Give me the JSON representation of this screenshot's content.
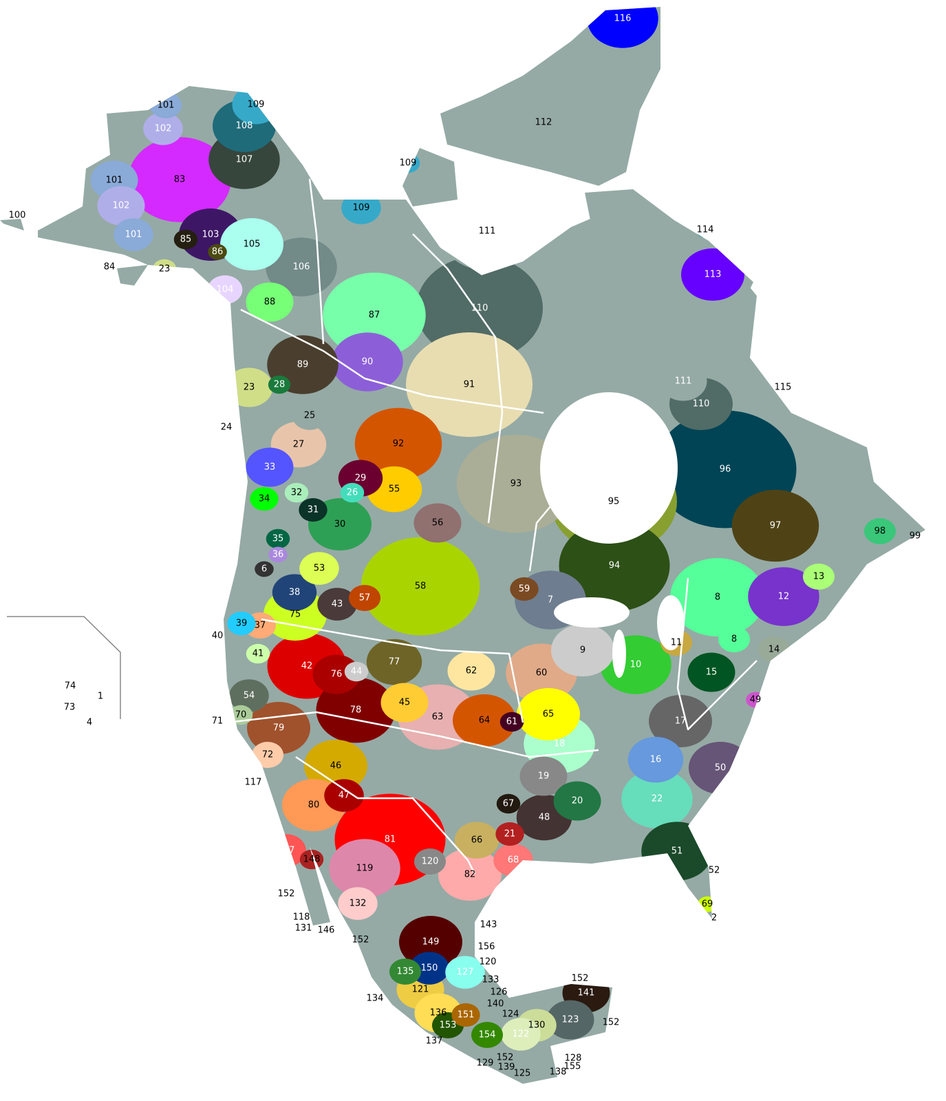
{
  "map": {
    "land_color": "#95aaa5",
    "water_color": "#ffffff",
    "border_color": "#ffffff",
    "regions": [
      {
        "label": "116",
        "color": "#0000ff"
      },
      {
        "label": "109",
        "color": "#36a9c9"
      },
      {
        "label": "101",
        "color": "#8aaad8"
      },
      {
        "label": "108",
        "color": "#1f6b7a"
      },
      {
        "label": "102",
        "color": "#b0aee8"
      },
      {
        "label": "107",
        "color": "#36463c"
      },
      {
        "label": "83",
        "color": "#d42aff"
      },
      {
        "label": "101",
        "color": "#8aaad8"
      },
      {
        "label": "109",
        "color": "#36a9c9"
      },
      {
        "label": "112",
        "color": "#55ddff"
      },
      {
        "label": "102",
        "color": "#b0aee8"
      },
      {
        "label": "109",
        "color": "#36a9c9"
      },
      {
        "label": "111",
        "color": "#95aaa5"
      },
      {
        "label": "114",
        "color": "#1d8aa0"
      },
      {
        "label": "100",
        "color": "#44287a"
      },
      {
        "label": "101",
        "color": "#8aaad8"
      },
      {
        "label": "85",
        "color": "#241f10"
      },
      {
        "label": "103",
        "color": "#3d1766"
      },
      {
        "label": "86",
        "color": "#4b4a10"
      },
      {
        "label": "105",
        "color": "#aaffee"
      },
      {
        "label": "106",
        "color": "#728a88"
      },
      {
        "label": "84",
        "color": "#aba58e"
      },
      {
        "label": "23",
        "color": "#d0de88"
      },
      {
        "label": "113",
        "color": "#6600ff"
      },
      {
        "label": "104",
        "color": "#e8d5ff"
      },
      {
        "label": "88",
        "color": "#77ff77"
      },
      {
        "label": "87",
        "color": "#77ffaa"
      },
      {
        "label": "110",
        "color": "#516b66"
      },
      {
        "label": "90",
        "color": "#8c5fd8"
      },
      {
        "label": "89",
        "color": "#4a3f2e"
      },
      {
        "label": "91",
        "color": "#e8ddb0"
      },
      {
        "label": "111",
        "color": "#95aaa5"
      },
      {
        "label": "115",
        "color": "#1ad6aa"
      },
      {
        "label": "110",
        "color": "#516b66"
      },
      {
        "label": "23",
        "color": "#d0de88"
      },
      {
        "label": "28",
        "color": "#1a7a3c"
      },
      {
        "label": "25",
        "color": "#95aaa5"
      },
      {
        "label": "24",
        "color": "#2b3b30"
      },
      {
        "label": "27",
        "color": "#e8c4aa"
      },
      {
        "label": "92",
        "color": "#d45500"
      },
      {
        "label": "96",
        "color": "#004455"
      },
      {
        "label": "33",
        "color": "#5555ff"
      },
      {
        "label": "29",
        "color": "#6b0030"
      },
      {
        "label": "93",
        "color": "#aaae96"
      },
      {
        "label": "55",
        "color": "#ffcc00"
      },
      {
        "label": "26",
        "color": "#44ddbb"
      },
      {
        "label": "32",
        "color": "#aaeebb"
      },
      {
        "label": "34",
        "color": "#00ff00"
      },
      {
        "label": "95",
        "color": "#88a030"
      },
      {
        "label": "31",
        "color": "#0b3327"
      },
      {
        "label": "30",
        "color": "#2ea055"
      },
      {
        "label": "56",
        "color": "#917070"
      },
      {
        "label": "97",
        "color": "#4f4316"
      },
      {
        "label": "98",
        "color": "#3ac77a"
      },
      {
        "label": "99",
        "color": "#ffffff"
      },
      {
        "label": "35",
        "color": "#006644"
      },
      {
        "label": "36",
        "color": "#aa88dd"
      },
      {
        "label": "94",
        "color": "#2d5016"
      },
      {
        "label": "53",
        "color": "#ddff55"
      },
      {
        "label": "6",
        "color": "#333333"
      },
      {
        "label": "13",
        "color": "#aaff77"
      },
      {
        "label": "59",
        "color": "#7a4a22"
      },
      {
        "label": "58",
        "color": "#aad400"
      },
      {
        "label": "38",
        "color": "#214478"
      },
      {
        "label": "57",
        "color": "#c04500"
      },
      {
        "label": "43",
        "color": "#4a3a3a"
      },
      {
        "label": "7",
        "color": "#6f7d90"
      },
      {
        "label": "8",
        "color": "#55ff99"
      },
      {
        "label": "12",
        "color": "#7733cc"
      },
      {
        "label": "75",
        "color": "#ccff22"
      },
      {
        "label": "39",
        "color": "#22ccff"
      },
      {
        "label": "37",
        "color": "#ffaa77"
      },
      {
        "label": "40",
        "color": "#116666"
      },
      {
        "label": "11",
        "color": "#c8a840"
      },
      {
        "label": "8",
        "color": "#55ff99"
      },
      {
        "label": "14",
        "color": "#99aa99"
      },
      {
        "label": "9",
        "color": "#cccccc"
      },
      {
        "label": "41",
        "color": "#ccffaa"
      },
      {
        "label": "42",
        "color": "#dd0000"
      },
      {
        "label": "77",
        "color": "#6e6428"
      },
      {
        "label": "44",
        "color": "#cccccc"
      },
      {
        "label": "76",
        "color": "#aa0000"
      },
      {
        "label": "62",
        "color": "#ffe6a0"
      },
      {
        "label": "10",
        "color": "#33cc33"
      },
      {
        "label": "15",
        "color": "#005522"
      },
      {
        "label": "60",
        "color": "#e0aa88"
      },
      {
        "label": "74",
        "color": "#66bb99"
      },
      {
        "label": "1",
        "color": "#3b2a10"
      },
      {
        "label": "54",
        "color": "#5f6f5f"
      },
      {
        "label": "49",
        "color": "#cc55cc"
      },
      {
        "label": "73",
        "color": "#88ffaa"
      },
      {
        "label": "45",
        "color": "#ffcc33"
      },
      {
        "label": "78",
        "color": "#800000"
      },
      {
        "label": "70",
        "color": "#aacc99"
      },
      {
        "label": "4",
        "color": "#333333"
      },
      {
        "label": "71",
        "color": "#d45588"
      },
      {
        "label": "63",
        "color": "#e8b0b0"
      },
      {
        "label": "64",
        "color": "#d45500"
      },
      {
        "label": "61",
        "color": "#440022"
      },
      {
        "label": "65",
        "color": "#ffff00"
      },
      {
        "label": "17",
        "color": "#666666"
      },
      {
        "label": "79",
        "color": "#a0522d"
      },
      {
        "label": "18",
        "color": "#aaffcc"
      },
      {
        "label": "72",
        "color": "#ffccaa"
      },
      {
        "label": "46",
        "color": "#d4aa00"
      },
      {
        "label": "16",
        "color": "#6699dd"
      },
      {
        "label": "50",
        "color": "#665577"
      },
      {
        "label": "117",
        "color": "#7a4a10"
      },
      {
        "label": "19",
        "color": "#888888"
      },
      {
        "label": "47",
        "color": "#aa0000"
      },
      {
        "label": "20",
        "color": "#227744"
      },
      {
        "label": "22",
        "color": "#66ddbb"
      },
      {
        "label": "67",
        "color": "#221a10"
      },
      {
        "label": "80",
        "color": "#ff9955"
      },
      {
        "label": "48",
        "color": "#443333"
      },
      {
        "label": "21",
        "color": "#b32020"
      },
      {
        "label": "81",
        "color": "#ff0000"
      },
      {
        "label": "66",
        "color": "#c8b060"
      },
      {
        "label": "51",
        "color": "#1a4a2a"
      },
      {
        "label": "147",
        "color": "#ff5555"
      },
      {
        "label": "148",
        "color": "#aa2222"
      },
      {
        "label": "68",
        "color": "#ff7777"
      },
      {
        "label": "120",
        "color": "#888888"
      },
      {
        "label": "52",
        "color": "#1a4a2a"
      },
      {
        "label": "119",
        "color": "#dd88aa"
      },
      {
        "label": "82",
        "color": "#ffaaaa"
      },
      {
        "label": "152",
        "color": "#ff00cc"
      },
      {
        "label": "132",
        "color": "#ffcccc"
      },
      {
        "label": "69",
        "color": "#ccff00"
      },
      {
        "label": "118",
        "color": "#333333"
      },
      {
        "label": "2",
        "color": "#ff00cc"
      },
      {
        "label": "146",
        "color": "#aadd22"
      },
      {
        "label": "131",
        "color": "#556b2f"
      },
      {
        "label": "143",
        "color": "#4a2a10"
      },
      {
        "label": "152",
        "color": "#ff00cc"
      },
      {
        "label": "149",
        "color": "#550000"
      },
      {
        "label": "156",
        "color": "#ff3366"
      },
      {
        "label": "120",
        "color": "#888888"
      },
      {
        "label": "135",
        "color": "#338833"
      },
      {
        "label": "150",
        "color": "#003388"
      },
      {
        "label": "127",
        "color": "#88ffee"
      },
      {
        "label": "133",
        "color": "#66ccaa"
      },
      {
        "label": "152",
        "color": "#ff00cc"
      },
      {
        "label": "141",
        "color": "#2a1a10"
      },
      {
        "label": "121",
        "color": "#eecc44"
      },
      {
        "label": "126",
        "color": "#88aa55"
      },
      {
        "label": "134",
        "color": "#cc9966"
      },
      {
        "label": "140",
        "color": "#333333"
      },
      {
        "label": "136",
        "color": "#ffdd55"
      },
      {
        "label": "151",
        "color": "#aa6600"
      },
      {
        "label": "124",
        "color": "#222222"
      },
      {
        "label": "123",
        "color": "#556666"
      },
      {
        "label": "152",
        "color": "#ff00cc"
      },
      {
        "label": "130",
        "color": "#ccdd99"
      },
      {
        "label": "153",
        "color": "#225500"
      },
      {
        "label": "154",
        "color": "#338800"
      },
      {
        "label": "122",
        "color": "#ddeebb"
      },
      {
        "label": "137",
        "color": "#ff6600"
      },
      {
        "label": "128",
        "color": "#664422"
      },
      {
        "label": "152",
        "color": "#ff00cc"
      },
      {
        "label": "129",
        "color": "#aa4400"
      },
      {
        "label": "155",
        "color": "#aa6633"
      },
      {
        "label": "139",
        "color": "#884488"
      },
      {
        "label": "138",
        "color": "#443311"
      },
      {
        "label": "125",
        "color": "#cc77aa"
      }
    ]
  }
}
